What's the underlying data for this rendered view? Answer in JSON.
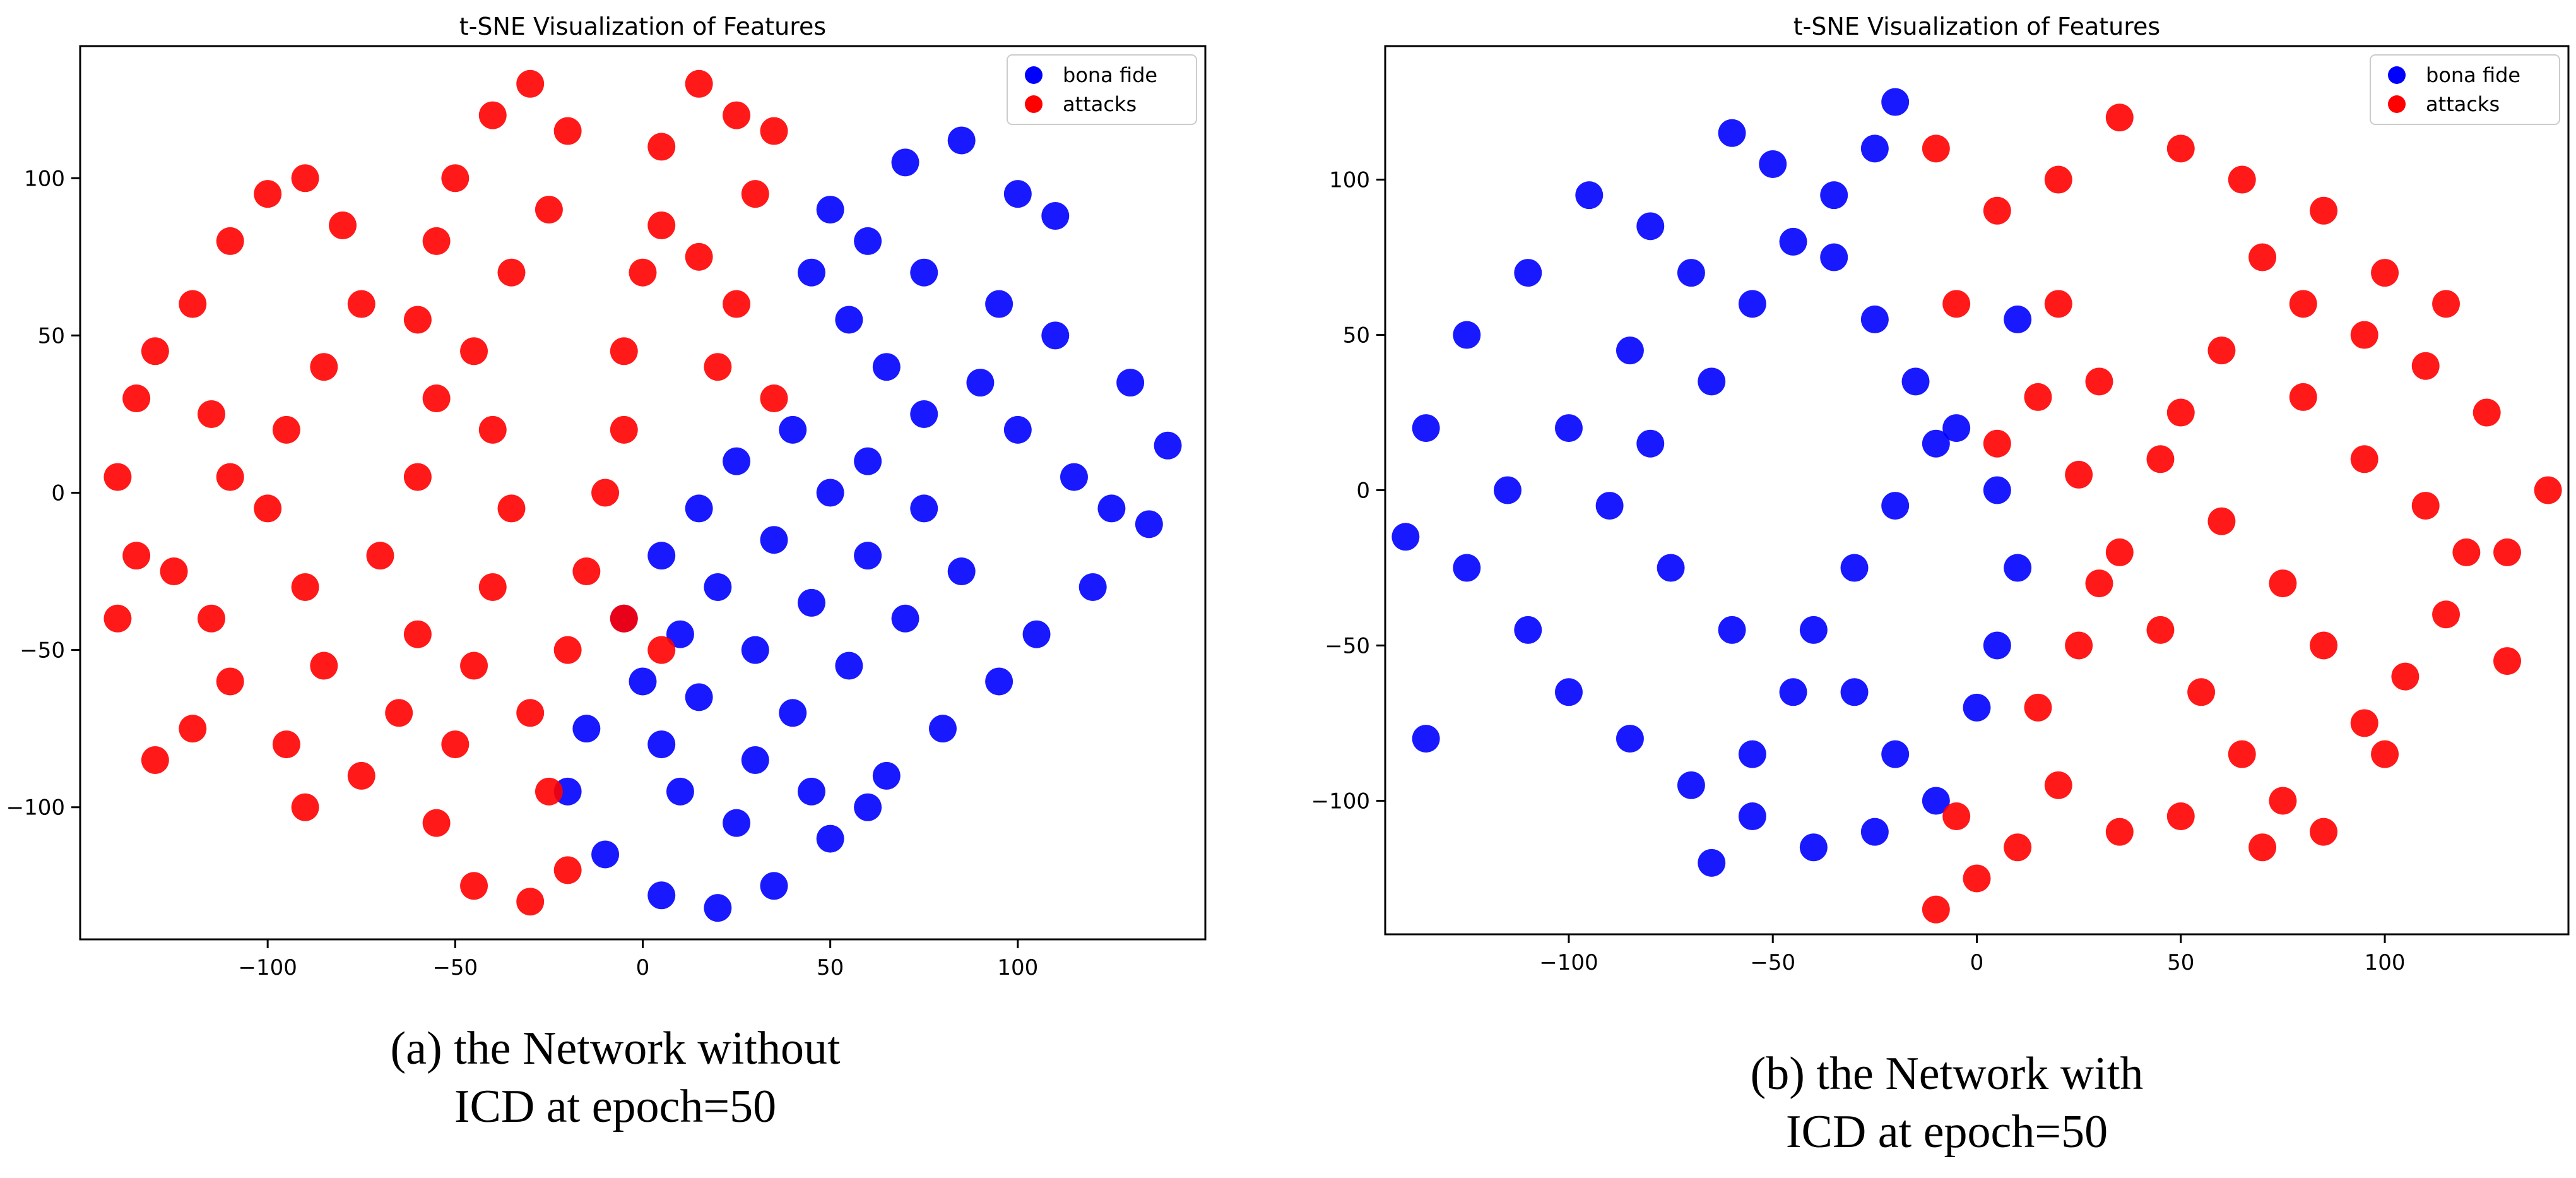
{
  "colors": {
    "bona_fide": "#0000ff",
    "attacks": "#ff0000",
    "axes": "#000000",
    "background": "#ffffff"
  },
  "captions": {
    "a": {
      "line1": "(a) the Network without",
      "line2": "ICD at epoch=50"
    },
    "b": {
      "line1": "(b) the Network with",
      "line2": "ICD at epoch=50"
    }
  },
  "chart_data": [
    {
      "type": "scatter",
      "title": "t-SNE Visualization of Features",
      "xlabel": "",
      "ylabel": "",
      "xlim": [
        -150,
        150
      ],
      "ylim": [
        -142,
        142
      ],
      "xticks": [
        -100,
        -50,
        0,
        50,
        100
      ],
      "xtick_labels": [
        "−100",
        "−50",
        "0",
        "50",
        "100"
      ],
      "yticks": [
        -100,
        -50,
        0,
        50,
        100
      ],
      "ytick_labels": [
        "−100",
        "−50",
        "0",
        "50",
        "100"
      ],
      "grid": false,
      "legend": {
        "position": "top-right",
        "entries": [
          "bona fide",
          "attacks"
        ]
      },
      "series": [
        {
          "name": "bona fide",
          "color": "#0000ff",
          "points": [
            [
              70,
              105
            ],
            [
              85,
              112
            ],
            [
              100,
              95
            ],
            [
              110,
              88
            ],
            [
              60,
              80
            ],
            [
              75,
              70
            ],
            [
              95,
              60
            ],
            [
              110,
              50
            ],
            [
              130,
              35
            ],
            [
              140,
              15
            ],
            [
              135,
              -10
            ],
            [
              120,
              -30
            ],
            [
              105,
              -45
            ],
            [
              95,
              -60
            ],
            [
              80,
              -75
            ],
            [
              65,
              -90
            ],
            [
              50,
              -110
            ],
            [
              35,
              -125
            ],
            [
              20,
              -132
            ],
            [
              5,
              -128
            ],
            [
              -10,
              -115
            ],
            [
              -20,
              -95
            ],
            [
              -15,
              -75
            ],
            [
              0,
              -60
            ],
            [
              10,
              -45
            ],
            [
              20,
              -30
            ],
            [
              35,
              -15
            ],
            [
              50,
              0
            ],
            [
              60,
              10
            ],
            [
              75,
              25
            ],
            [
              90,
              35
            ],
            [
              100,
              20
            ],
            [
              115,
              5
            ],
            [
              125,
              -5
            ],
            [
              85,
              -25
            ],
            [
              70,
              -40
            ],
            [
              55,
              -55
            ],
            [
              40,
              -70
            ],
            [
              30,
              -85
            ],
            [
              45,
              -95
            ],
            [
              60,
              -100
            ],
            [
              25,
              -105
            ],
            [
              10,
              -95
            ],
            [
              5,
              -80
            ],
            [
              15,
              -65
            ],
            [
              30,
              -50
            ],
            [
              45,
              -35
            ],
            [
              60,
              -20
            ],
            [
              75,
              -5
            ],
            [
              65,
              40
            ],
            [
              55,
              55
            ],
            [
              45,
              70
            ],
            [
              50,
              90
            ],
            [
              40,
              20
            ],
            [
              25,
              10
            ],
            [
              15,
              -5
            ],
            [
              5,
              -20
            ],
            [
              -5,
              -40
            ]
          ]
        },
        {
          "name": "attacks",
          "color": "#ff0000",
          "points": [
            [
              -140,
              -40
            ],
            [
              -135,
              -20
            ],
            [
              -125,
              -25
            ],
            [
              -115,
              -40
            ],
            [
              -110,
              -60
            ],
            [
              -120,
              -75
            ],
            [
              -130,
              -85
            ],
            [
              -140,
              5
            ],
            [
              -135,
              30
            ],
            [
              -130,
              45
            ],
            [
              -115,
              25
            ],
            [
              -110,
              5
            ],
            [
              -120,
              60
            ],
            [
              -110,
              80
            ],
            [
              -100,
              95
            ],
            [
              -90,
              100
            ],
            [
              -80,
              85
            ],
            [
              -75,
              60
            ],
            [
              -85,
              40
            ],
            [
              -95,
              20
            ],
            [
              -100,
              -5
            ],
            [
              -90,
              -30
            ],
            [
              -85,
              -55
            ],
            [
              -95,
              -80
            ],
            [
              -90,
              -100
            ],
            [
              -75,
              -90
            ],
            [
              -65,
              -70
            ],
            [
              -60,
              -45
            ],
            [
              -70,
              -20
            ],
            [
              -60,
              5
            ],
            [
              -55,
              30
            ],
            [
              -60,
              55
            ],
            [
              -55,
              80
            ],
            [
              -50,
              100
            ],
            [
              -40,
              120
            ],
            [
              -30,
              130
            ],
            [
              -20,
              115
            ],
            [
              -25,
              90
            ],
            [
              -35,
              70
            ],
            [
              -45,
              45
            ],
            [
              -40,
              20
            ],
            [
              -35,
              -5
            ],
            [
              -40,
              -30
            ],
            [
              -45,
              -55
            ],
            [
              -50,
              -80
            ],
            [
              -55,
              -105
            ],
            [
              -45,
              -125
            ],
            [
              -30,
              -130
            ],
            [
              -20,
              -120
            ],
            [
              -25,
              -95
            ],
            [
              -30,
              -70
            ],
            [
              -20,
              -50
            ],
            [
              -15,
              -25
            ],
            [
              -10,
              0
            ],
            [
              -5,
              20
            ],
            [
              -5,
              45
            ],
            [
              0,
              70
            ],
            [
              5,
              85
            ],
            [
              15,
              75
            ],
            [
              25,
              60
            ],
            [
              30,
              95
            ],
            [
              25,
              120
            ],
            [
              15,
              130
            ],
            [
              5,
              110
            ],
            [
              35,
              115
            ],
            [
              20,
              40
            ],
            [
              35,
              30
            ],
            [
              -5,
              -40
            ],
            [
              5,
              -50
            ]
          ]
        }
      ]
    },
    {
      "type": "scatter",
      "title": "t-SNE Visualization of Features",
      "xlabel": "",
      "ylabel": "",
      "xlim": [
        -145,
        145
      ],
      "ylim": [
        -143,
        143
      ],
      "xticks": [
        -100,
        -50,
        0,
        50,
        100
      ],
      "xtick_labels": [
        "−100",
        "−50",
        "0",
        "50",
        "100"
      ],
      "yticks": [
        -100,
        -50,
        0,
        50,
        100
      ],
      "ytick_labels": [
        "−100",
        "−50",
        "0",
        "50",
        "100"
      ],
      "grid": false,
      "legend": {
        "position": "top-right",
        "entries": [
          "bona fide",
          "attacks"
        ]
      },
      "series": [
        {
          "name": "bona fide",
          "color": "#0000ff",
          "points": [
            [
              -140,
              -15
            ],
            [
              -135,
              20
            ],
            [
              -125,
              50
            ],
            [
              -110,
              70
            ],
            [
              -95,
              95
            ],
            [
              -80,
              85
            ],
            [
              -70,
              70
            ],
            [
              -85,
              45
            ],
            [
              -100,
              20
            ],
            [
              -115,
              0
            ],
            [
              -125,
              -25
            ],
            [
              -110,
              -45
            ],
            [
              -100,
              -65
            ],
            [
              -85,
              -80
            ],
            [
              -70,
              -95
            ],
            [
              -55,
              -85
            ],
            [
              -45,
              -65
            ],
            [
              -60,
              -45
            ],
            [
              -75,
              -25
            ],
            [
              -90,
              -5
            ],
            [
              -80,
              15
            ],
            [
              -65,
              35
            ],
            [
              -55,
              60
            ],
            [
              -45,
              80
            ],
            [
              -35,
              95
            ],
            [
              -25,
              110
            ],
            [
              -20,
              125
            ],
            [
              -35,
              75
            ],
            [
              -25,
              55
            ],
            [
              -15,
              35
            ],
            [
              -10,
              15
            ],
            [
              -20,
              -5
            ],
            [
              -30,
              -25
            ],
            [
              -40,
              -45
            ],
            [
              -30,
              -65
            ],
            [
              -20,
              -85
            ],
            [
              -10,
              -100
            ],
            [
              -25,
              -110
            ],
            [
              -40,
              -115
            ],
            [
              -55,
              -105
            ],
            [
              -65,
              -120
            ],
            [
              0,
              -70
            ],
            [
              5,
              -50
            ],
            [
              10,
              -25
            ],
            [
              5,
              0
            ],
            [
              -5,
              20
            ],
            [
              10,
              55
            ],
            [
              -60,
              115
            ],
            [
              -50,
              105
            ],
            [
              -135,
              -80
            ]
          ]
        },
        {
          "name": "attacks",
          "color": "#ff0000",
          "points": [
            [
              -10,
              110
            ],
            [
              5,
              90
            ],
            [
              20,
              100
            ],
            [
              35,
              120
            ],
            [
              50,
              110
            ],
            [
              65,
              100
            ],
            [
              70,
              75
            ],
            [
              80,
              60
            ],
            [
              95,
              50
            ],
            [
              110,
              40
            ],
            [
              125,
              25
            ],
            [
              140,
              0
            ],
            [
              130,
              -20
            ],
            [
              115,
              -40
            ],
            [
              105,
              -60
            ],
            [
              100,
              -85
            ],
            [
              95,
              -75
            ],
            [
              85,
              -50
            ],
            [
              75,
              -30
            ],
            [
              60,
              -10
            ],
            [
              45,
              10
            ],
            [
              30,
              35
            ],
            [
              20,
              60
            ],
            [
              15,
              30
            ],
            [
              25,
              5
            ],
            [
              35,
              -20
            ],
            [
              45,
              -45
            ],
            [
              55,
              -65
            ],
            [
              65,
              -85
            ],
            [
              75,
              -100
            ],
            [
              85,
              -110
            ],
            [
              70,
              -115
            ],
            [
              50,
              -105
            ],
            [
              35,
              -110
            ],
            [
              20,
              -95
            ],
            [
              10,
              -115
            ],
            [
              0,
              -125
            ],
            [
              -10,
              -135
            ],
            [
              -5,
              -105
            ],
            [
              15,
              -70
            ],
            [
              25,
              -50
            ],
            [
              30,
              -30
            ],
            [
              50,
              25
            ],
            [
              60,
              45
            ],
            [
              80,
              30
            ],
            [
              95,
              10
            ],
            [
              110,
              -5
            ],
            [
              120,
              -20
            ],
            [
              85,
              90
            ],
            [
              100,
              70
            ],
            [
              115,
              60
            ],
            [
              -5,
              60
            ],
            [
              5,
              15
            ],
            [
              130,
              -55
            ]
          ]
        }
      ]
    }
  ]
}
